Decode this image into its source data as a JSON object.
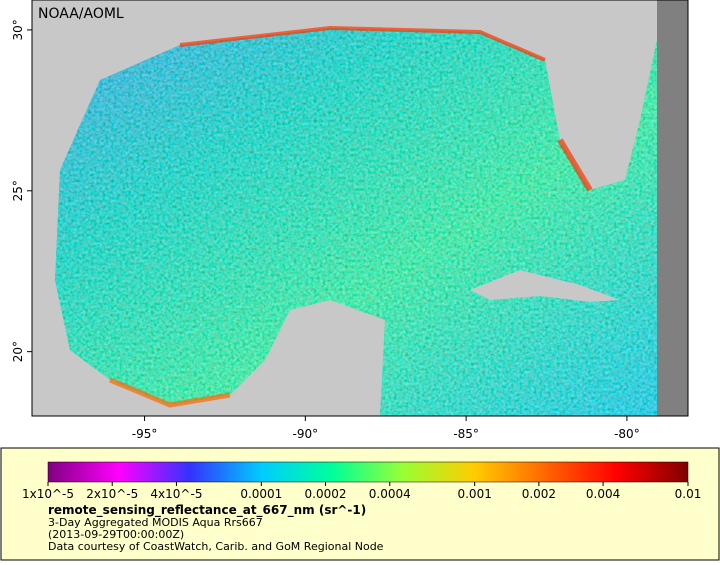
{
  "map": {
    "watermark": "NOAA/AOML",
    "lon_range": [
      -98.5,
      -78.1
    ],
    "lat_range": [
      18,
      30.93
    ],
    "lon_ticks": [
      {
        "value": -95,
        "label": "-95°"
      },
      {
        "value": -90,
        "label": "-90°"
      },
      {
        "value": -85,
        "label": "-85°"
      },
      {
        "value": -80,
        "label": "-80°"
      }
    ],
    "lat_ticks": [
      {
        "value": 20,
        "label": "20°"
      },
      {
        "value": 25,
        "label": "25°"
      },
      {
        "value": 30,
        "label": "30°"
      }
    ]
  },
  "legend": {
    "scale": "log",
    "range": [
      1e-05,
      0.01
    ],
    "colors": [
      "#800080",
      "#ff00ff",
      "#3333ff",
      "#00ccff",
      "#00ff99",
      "#99ff33",
      "#ffcc00",
      "#ff6600",
      "#ff0000",
      "#800000"
    ],
    "ticks": [
      {
        "value": 1e-05,
        "label": "1x10^-5"
      },
      {
        "value": 2e-05,
        "label": "2x10^-5"
      },
      {
        "value": 4e-05,
        "label": "4x10^-5"
      },
      0.0001,
      0.0002,
      0.0004,
      0.001,
      0.002,
      0.004,
      0.01
    ],
    "title": "remote_sensing_reflectance_at_667_nm (sr^-1)",
    "lines": [
      "3-Day Aggregated MODIS Aqua Rrs667",
      "(2013-09-29T00:00:00Z)",
      "Data courtesy of CoastWatch, Carib. and GoM Regional Node"
    ]
  }
}
